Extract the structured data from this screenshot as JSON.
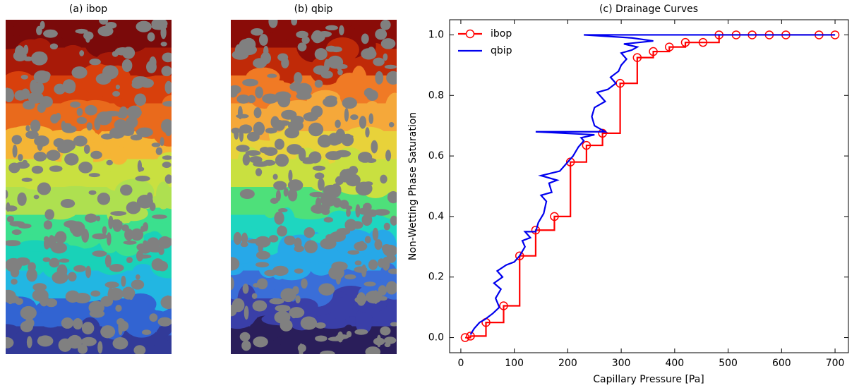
{
  "panels": [
    {
      "title": "(a) ibop"
    },
    {
      "title": "(b) qbip"
    }
  ],
  "chart_data": {
    "type": "line",
    "title": "(c) Drainage Curves",
    "x_label": "Capillary Pressure [Pa]",
    "y_label": "Non-Wetting Phase Saturation",
    "xlim": [
      -21,
      725
    ],
    "ylim": [
      -0.05,
      1.05
    ],
    "xticks": [
      0,
      100,
      200,
      300,
      400,
      500,
      600,
      700
    ],
    "yticks": [
      {
        "value": 0,
        "label": "0.0"
      },
      0.2,
      0.4,
      0.6,
      0.8,
      {
        "value": 1,
        "label": "1.0"
      }
    ],
    "legend": "upper left",
    "series": [
      {
        "name": "ibop",
        "color": "#ff0000",
        "marker": "circle",
        "step": true,
        "x": [
          8,
          18,
          47,
          80,
          110,
          140,
          175,
          205,
          235,
          265,
          298,
          330,
          360,
          390,
          420,
          453,
          483,
          515,
          545,
          577,
          608,
          670,
          700
        ],
        "values": [
          0,
          0.005,
          0.05,
          0.105,
          0.27,
          0.355,
          0.4,
          0.58,
          0.635,
          0.675,
          0.84,
          0.925,
          0.945,
          0.96,
          0.975,
          0.975,
          1,
          1,
          1,
          1,
          1,
          1,
          1
        ]
      },
      {
        "name": "qbip",
        "color": "#0000ee",
        "marker": "none",
        "step": false,
        "x": [
          18,
          25,
          35,
          45,
          60,
          72,
          65,
          75,
          62,
          78,
          68,
          85,
          100,
          110,
          120,
          115,
          130,
          120,
          140,
          145,
          155,
          160,
          150,
          170,
          165,
          180,
          150,
          185,
          195,
          210,
          220,
          230,
          225,
          250,
          140,
          270,
          250,
          245,
          250,
          270,
          255,
          275,
          290,
          280,
          295,
          300,
          310,
          300,
          320,
          330,
          305,
          360,
          320,
          230,
          480,
          700
        ],
        "values": [
          0.01,
          0.03,
          0.05,
          0.06,
          0.08,
          0.1,
          0.13,
          0.16,
          0.18,
          0.2,
          0.22,
          0.24,
          0.25,
          0.27,
          0.3,
          0.32,
          0.33,
          0.35,
          0.35,
          0.38,
          0.41,
          0.45,
          0.47,
          0.48,
          0.51,
          0.52,
          0.535,
          0.55,
          0.57,
          0.6,
          0.63,
          0.65,
          0.66,
          0.67,
          0.68,
          0.68,
          0.7,
          0.73,
          0.76,
          0.78,
          0.81,
          0.82,
          0.84,
          0.86,
          0.88,
          0.9,
          0.92,
          0.94,
          0.95,
          0.96,
          0.97,
          0.98,
          0.99,
          1,
          1,
          1
        ]
      }
    ]
  }
}
